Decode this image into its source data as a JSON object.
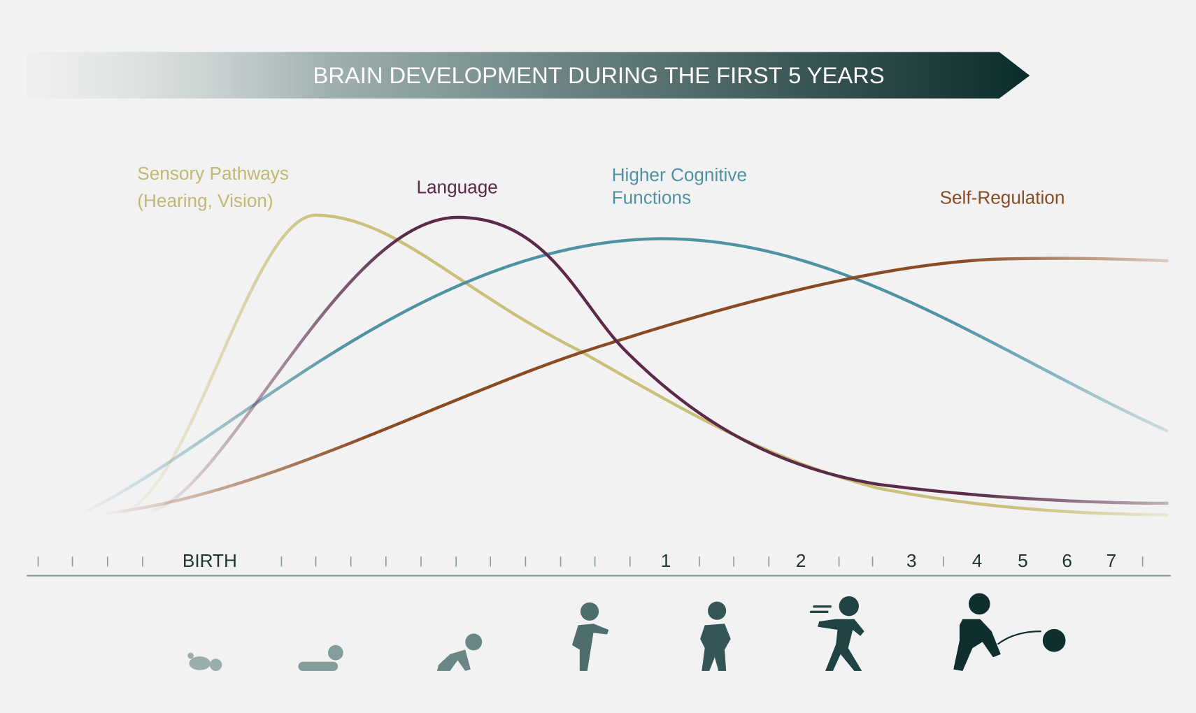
{
  "header": {
    "title": "BRAIN DEVELOPMENT DURING THE FIRST 5 YEARS"
  },
  "curves": [
    {
      "label": [
        "Sensory Pathways",
        "(Hearing, Vision)"
      ]
    },
    {
      "label": [
        "Language"
      ]
    },
    {
      "label": [
        "Higher Cognitive",
        "Functions"
      ]
    },
    {
      "label": [
        "Self-Regulation"
      ]
    }
  ],
  "timeline": [
    "BIRTH",
    "1",
    "2",
    "3",
    "4",
    "5",
    "6",
    "7"
  ]
}
